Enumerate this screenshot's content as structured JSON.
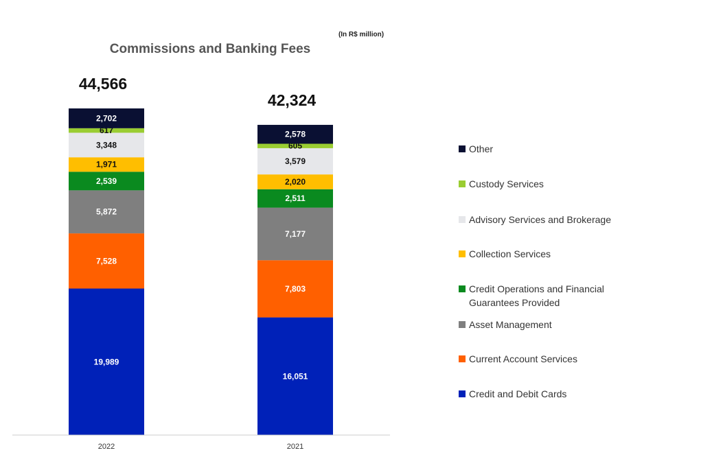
{
  "chart_data": {
    "type": "bar",
    "stacked": true,
    "title": "Commissions and Banking Fees",
    "units_note": "(In R$ million)",
    "categories": [
      "2022",
      "2021"
    ],
    "totals": [
      "44,566",
      "42,324"
    ],
    "total_values": [
      44566,
      42324
    ],
    "series": [
      {
        "name": "Credit and Debit Cards",
        "color": "#0021B8",
        "label_color": "#ffffff",
        "values": [
          19989,
          16051
        ],
        "labels": [
          "19,989",
          "16,051"
        ],
        "legend_lines": [
          "Credit and Debit Cards"
        ]
      },
      {
        "name": "Current Account Services",
        "color": "#FF6000",
        "label_color": "#ffffff",
        "values": [
          7528,
          7803
        ],
        "labels": [
          "7,528",
          "7,803"
        ],
        "legend_lines": [
          "Current Account Services"
        ]
      },
      {
        "name": "Asset Management",
        "color": "#7F7F7F",
        "label_color": "#ffffff",
        "values": [
          5872,
          7177
        ],
        "labels": [
          "5,872",
          "7,177"
        ],
        "legend_lines": [
          "Asset Management"
        ]
      },
      {
        "name": "Credit Operations and Financial Guarantees Provided",
        "color": "#0A8A1F",
        "label_color": "#ffffff",
        "values": [
          2539,
          2511
        ],
        "labels": [
          "2,539",
          "2,511"
        ],
        "legend_lines": [
          "Credit Operations and Financial",
          "Guarantees Provided"
        ]
      },
      {
        "name": "Collection Services",
        "color": "#FFBE00",
        "label_color": "#111111",
        "values": [
          1971,
          2020
        ],
        "labels": [
          "1,971",
          "2,020"
        ],
        "legend_lines": [
          "Collection Services"
        ]
      },
      {
        "name": "Advisory Services and Brokerage",
        "color": "#E6E7EA",
        "label_color": "#111111",
        "values": [
          3348,
          3579
        ],
        "labels": [
          "3,348",
          "3,579"
        ],
        "legend_lines": [
          "Advisory Services and Brokerage"
        ]
      },
      {
        "name": "Custody Services",
        "color": "#9ACD32",
        "label_color": "#111111",
        "values": [
          617,
          605
        ],
        "labels": [
          "617",
          "605"
        ],
        "legend_lines": [
          "Custody Services"
        ]
      },
      {
        "name": "Other",
        "color": "#0A1033",
        "label_color": "#ffffff",
        "values": [
          2702,
          2578
        ],
        "labels": [
          "2,702",
          "2,578"
        ],
        "legend_lines": [
          "Other"
        ]
      }
    ],
    "legend_position": "right",
    "grid": false
  }
}
